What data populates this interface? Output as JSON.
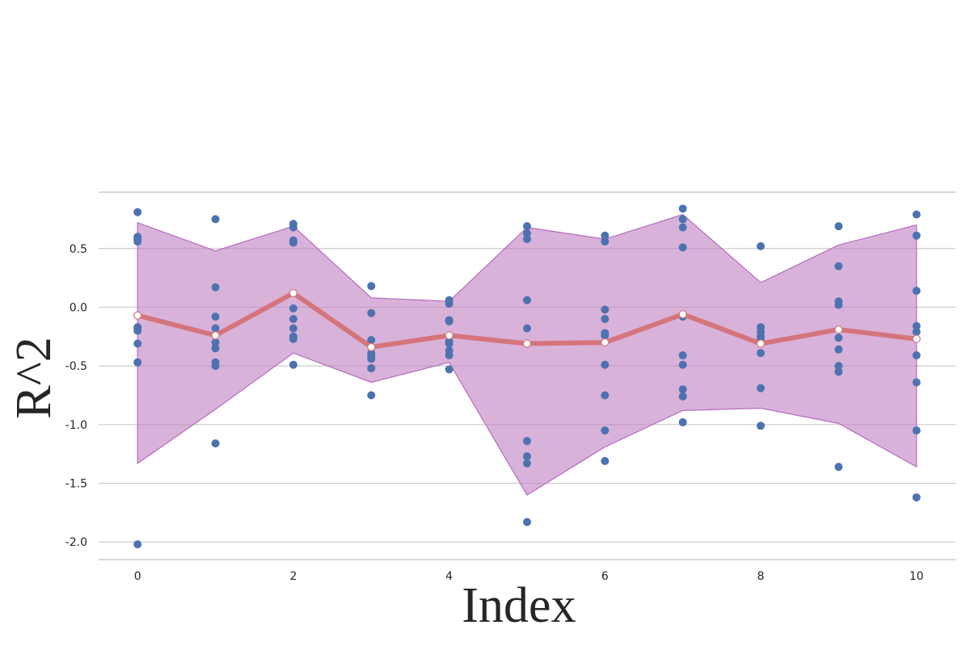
{
  "chart_data": {
    "type": "line",
    "title": "",
    "xlabel": "Index",
    "ylabel": "R^2",
    "xlim": [
      -0.5,
      10.5
    ],
    "ylim": [
      -2.15,
      0.98
    ],
    "x_ticks": [
      0,
      2,
      4,
      6,
      8,
      10
    ],
    "y_ticks": [
      -2.0,
      -1.5,
      -1.0,
      -0.5,
      0.0,
      0.5
    ],
    "grid": "horizontal",
    "colors": {
      "scatter": "#4c72b0",
      "mean_line": "#d4757b",
      "band_fill": "#c07ec2",
      "band_edge": "#b56bc0",
      "grid": "#cccccc",
      "text": "#262626"
    },
    "series": [
      {
        "kind": "mean_line",
        "x": [
          0,
          1,
          2,
          3,
          4,
          5,
          6,
          7,
          8,
          9,
          10
        ],
        "values": [
          -0.07,
          -0.24,
          0.12,
          -0.34,
          -0.24,
          -0.31,
          -0.3,
          -0.06,
          -0.31,
          -0.19,
          -0.27
        ]
      },
      {
        "kind": "band_upper",
        "x": [
          0,
          1,
          2,
          3,
          4,
          5,
          6,
          7,
          8,
          9,
          10
        ],
        "values": [
          0.72,
          0.48,
          0.69,
          0.08,
          0.05,
          0.68,
          0.58,
          0.79,
          0.21,
          0.53,
          0.7
        ]
      },
      {
        "kind": "band_lower",
        "x": [
          0,
          1,
          2,
          3,
          4,
          5,
          6,
          7,
          8,
          9,
          10
        ],
        "values": [
          -1.33,
          -0.87,
          -0.39,
          -0.64,
          -0.47,
          -1.6,
          -1.19,
          -0.88,
          -0.86,
          -0.99,
          -1.36
        ]
      }
    ],
    "points": [
      {
        "x": 0,
        "values": [
          0.81,
          0.6,
          0.58,
          0.56,
          -0.17,
          -0.18,
          -0.2,
          -0.31,
          -0.47,
          -2.02
        ]
      },
      {
        "x": 1,
        "values": [
          0.75,
          0.17,
          -0.08,
          -0.18,
          -0.3,
          -0.35,
          -0.47,
          -0.5,
          -1.16
        ]
      },
      {
        "x": 2,
        "values": [
          0.71,
          0.68,
          0.57,
          0.55,
          -0.01,
          -0.1,
          -0.18,
          -0.25,
          -0.27,
          -0.49
        ]
      },
      {
        "x": 3,
        "values": [
          0.18,
          -0.05,
          -0.28,
          -0.39,
          -0.42,
          -0.44,
          -0.52,
          -0.75
        ]
      },
      {
        "x": 4,
        "values": [
          0.06,
          0.03,
          -0.11,
          -0.12,
          -0.29,
          -0.31,
          -0.37,
          -0.41,
          -0.53
        ]
      },
      {
        "x": 5,
        "values": [
          0.69,
          0.63,
          0.58,
          0.06,
          -0.18,
          -1.14,
          -1.27,
          -1.33,
          -1.83
        ]
      },
      {
        "x": 6,
        "values": [
          0.61,
          0.56,
          -0.02,
          -0.1,
          -0.22,
          -0.24,
          -0.49,
          -0.75,
          -1.05,
          -1.31
        ]
      },
      {
        "x": 7,
        "values": [
          0.84,
          0.75,
          0.68,
          0.51,
          -0.08,
          -0.41,
          -0.49,
          -0.7,
          -0.76,
          -0.98
        ]
      },
      {
        "x": 8,
        "values": [
          0.52,
          -0.17,
          -0.21,
          -0.25,
          -0.28,
          -0.39,
          -0.69,
          -1.01
        ]
      },
      {
        "x": 9,
        "values": [
          0.69,
          0.35,
          0.05,
          0.02,
          -0.26,
          -0.36,
          -0.5,
          -0.55,
          -1.36
        ]
      },
      {
        "x": 10,
        "values": [
          0.79,
          0.61,
          0.14,
          -0.16,
          -0.21,
          -0.41,
          -0.64,
          -1.05,
          -1.62
        ]
      }
    ]
  }
}
